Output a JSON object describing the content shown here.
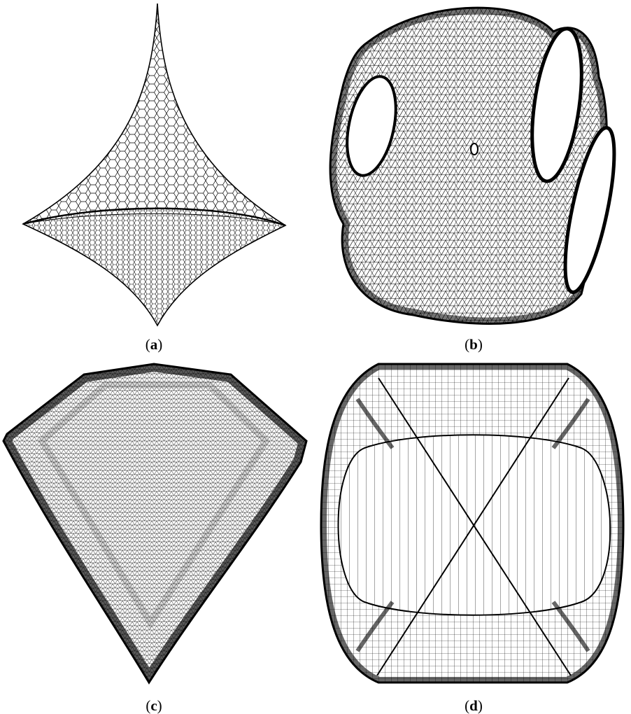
{
  "figure": {
    "panels": [
      {
        "id": "a",
        "label": "a",
        "mesh": "hexagonal"
      },
      {
        "id": "b",
        "label": "b",
        "mesh": "triangular"
      },
      {
        "id": "c",
        "label": "c",
        "mesh": "dense-triangular"
      },
      {
        "id": "d",
        "label": "d",
        "mesh": "quadrilateral"
      }
    ],
    "ink_color": "#000000",
    "background_color": "#ffffff"
  }
}
